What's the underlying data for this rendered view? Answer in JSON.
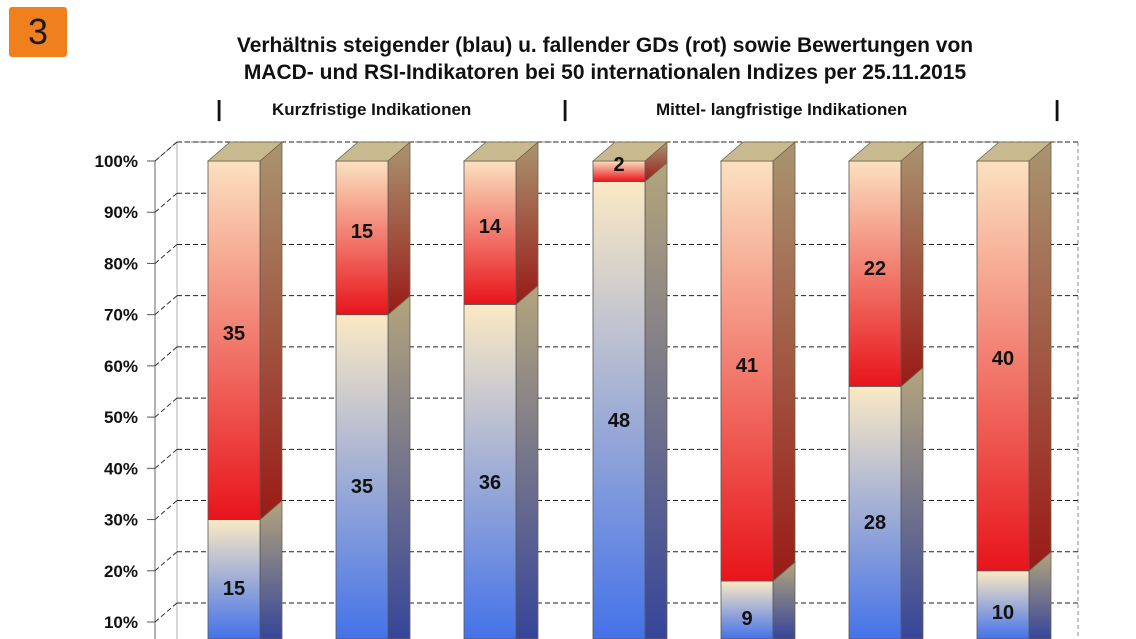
{
  "badge": "3",
  "title": {
    "line1": "Verhältnis steigender (blau) u. fallender GDs (rot) sowie Bewertungen von",
    "line2": "MACD- und RSI-Indikatoren bei 50 internationalen Indizes per 25.11.2015"
  },
  "groups": {
    "short": "Kurzfristige Indikationen",
    "long": "Mittel- langfristige Indikationen",
    "separator": "|"
  },
  "colors": {
    "rising_top": "#fbe9c4",
    "rising_bottom": "#4472e8",
    "falling_top": "#fbe1c0",
    "falling_bottom": "#e8141b",
    "side": "#a09474",
    "top_face": "#c8b98e"
  },
  "chart_data": {
    "type": "bar",
    "stacked": "percent",
    "y_tick_labels": [
      "10%",
      "20%",
      "30%",
      "40%",
      "50%",
      "60%",
      "70%",
      "80%",
      "90%",
      "100%"
    ],
    "ylim": [
      0,
      100
    ],
    "grid": "dashed horizontal",
    "series": [
      {
        "values": [
          15,
          35,
          36,
          48,
          9,
          28,
          10
        ]
      },
      {
        "values": [
          35,
          15,
          14,
          2,
          41,
          22,
          40
        ]
      }
    ]
  }
}
